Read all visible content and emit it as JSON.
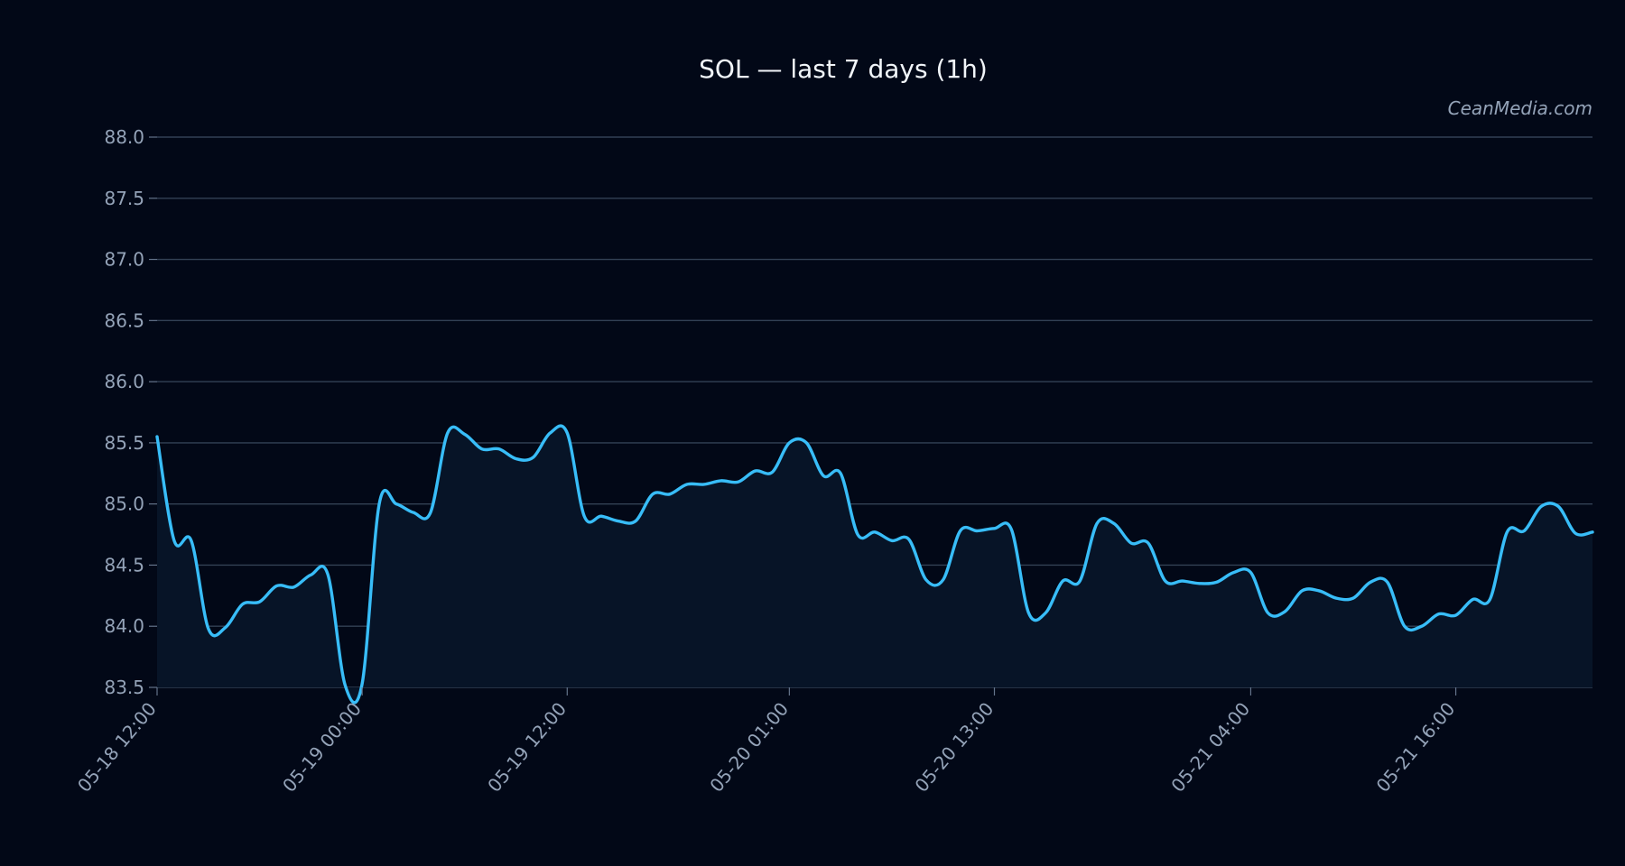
{
  "chart_data": {
    "type": "area",
    "title": "SOL — last 7 days (1h)",
    "watermark": "CeanMedia.com",
    "xlabel": "",
    "ylabel": "",
    "x_range": [
      "05-18 12:00",
      "05-22 00:00"
    ],
    "ylim": [
      83.5,
      88.0
    ],
    "y_ticks": [
      83.5,
      84.0,
      84.5,
      85.0,
      85.5,
      86.0,
      86.5,
      87.0,
      87.5,
      88.0
    ],
    "y_tick_labels": [
      "83.5",
      "84.0",
      "84.5",
      "85.0",
      "85.5",
      "86.0",
      "86.5",
      "87.0",
      "87.5",
      "88.0"
    ],
    "x_ticks": [
      "05-18 12:00",
      "05-19 00:00",
      "05-19 12:00",
      "05-20 01:00",
      "05-20 13:00",
      "05-21 04:00",
      "05-21 16:00"
    ],
    "grid": true,
    "legend": "none",
    "line_color": "#38bdf8",
    "fill_color": "#071427",
    "background": "#020817",
    "series": [
      {
        "points": [
          [
            "05-18 12:00",
            85.55
          ],
          [
            "05-18 13:00",
            84.7
          ],
          [
            "05-18 14:00",
            84.7
          ],
          [
            "05-18 15:00",
            83.98
          ],
          [
            "05-18 16:00",
            83.99
          ],
          [
            "05-18 17:00",
            84.18
          ],
          [
            "05-18 18:00",
            84.2
          ],
          [
            "05-18 19:00",
            84.33
          ],
          [
            "05-18 20:00",
            84.32
          ],
          [
            "05-18 21:00",
            84.42
          ],
          [
            "05-18 22:00",
            84.42
          ],
          [
            "05-18 23:00",
            83.52
          ],
          [
            "05-19 00:00",
            83.53
          ],
          [
            "05-19 01:00",
            85.0
          ],
          [
            "05-19 02:00",
            85.0
          ],
          [
            "05-19 03:00",
            84.93
          ],
          [
            "05-19 04:00",
            84.93
          ],
          [
            "05-19 05:00",
            85.58
          ],
          [
            "05-19 06:00",
            85.57
          ],
          [
            "05-19 07:00",
            85.45
          ],
          [
            "05-19 08:00",
            85.45
          ],
          [
            "05-19 09:00",
            85.37
          ],
          [
            "05-19 10:00",
            85.38
          ],
          [
            "05-19 11:00",
            85.58
          ],
          [
            "05-19 12:00",
            85.58
          ],
          [
            "05-19 13:00",
            84.9
          ],
          [
            "05-19 14:00",
            84.9
          ],
          [
            "05-19 15:00",
            84.86
          ],
          [
            "05-19 16:00",
            84.86
          ],
          [
            "05-19 17:00",
            85.08
          ],
          [
            "05-19 18:00",
            85.08
          ],
          [
            "05-19 19:00",
            85.16
          ],
          [
            "05-19 20:00",
            85.16
          ],
          [
            "05-19 21:00",
            85.19
          ],
          [
            "05-19 22:00",
            85.18
          ],
          [
            "05-19 23:00",
            85.27
          ],
          [
            "05-20 00:00",
            85.26
          ],
          [
            "05-20 01:00",
            85.5
          ],
          [
            "05-20 02:00",
            85.5
          ],
          [
            "05-20 03:00",
            85.23
          ],
          [
            "05-20 04:00",
            85.25
          ],
          [
            "05-20 05:00",
            84.75
          ],
          [
            "05-20 06:00",
            84.77
          ],
          [
            "05-20 07:00",
            84.7
          ],
          [
            "05-20 08:00",
            84.71
          ],
          [
            "05-20 09:00",
            84.38
          ],
          [
            "05-20 10:00",
            84.38
          ],
          [
            "05-20 11:00",
            84.78
          ],
          [
            "05-20 12:00",
            84.78
          ],
          [
            "05-20 13:00",
            84.8
          ],
          [
            "05-20 14:00",
            84.79
          ],
          [
            "05-20 15:00",
            84.11
          ],
          [
            "05-20 16:00",
            84.11
          ],
          [
            "05-20 17:00",
            84.37
          ],
          [
            "05-20 18:00",
            84.37
          ],
          [
            "05-20 19:00",
            84.84
          ],
          [
            "05-20 20:00",
            84.84
          ],
          [
            "05-20 21:00",
            84.68
          ],
          [
            "05-20 22:00",
            84.68
          ],
          [
            "05-20 23:00",
            84.37
          ],
          [
            "05-21 00:00",
            84.37
          ],
          [
            "05-21 01:00",
            84.35
          ],
          [
            "05-21 02:00",
            84.36
          ],
          [
            "05-21 03:00",
            84.44
          ],
          [
            "05-21 04:00",
            84.44
          ],
          [
            "05-21 05:00",
            84.11
          ],
          [
            "05-21 06:00",
            84.12
          ],
          [
            "05-21 07:00",
            84.29
          ],
          [
            "05-21 08:00",
            84.29
          ],
          [
            "05-21 09:00",
            84.23
          ],
          [
            "05-21 10:00",
            84.23
          ],
          [
            "05-21 11:00",
            84.36
          ],
          [
            "05-21 12:00",
            84.36
          ],
          [
            "05-21 13:00",
            84.0
          ],
          [
            "05-21 14:00",
            84.0
          ],
          [
            "05-21 15:00",
            84.1
          ],
          [
            "05-21 16:00",
            84.09
          ],
          [
            "05-21 17:00",
            84.22
          ],
          [
            "05-21 18:00",
            84.22
          ],
          [
            "05-21 19:00",
            84.77
          ],
          [
            "05-21 20:00",
            84.78
          ],
          [
            "05-21 21:00",
            84.98
          ],
          [
            "05-21 22:00",
            84.98
          ],
          [
            "05-21 23:00",
            84.76
          ],
          [
            "05-22 00:00",
            84.77
          ]
        ]
      }
    ],
    "series_note_visible": false
  }
}
